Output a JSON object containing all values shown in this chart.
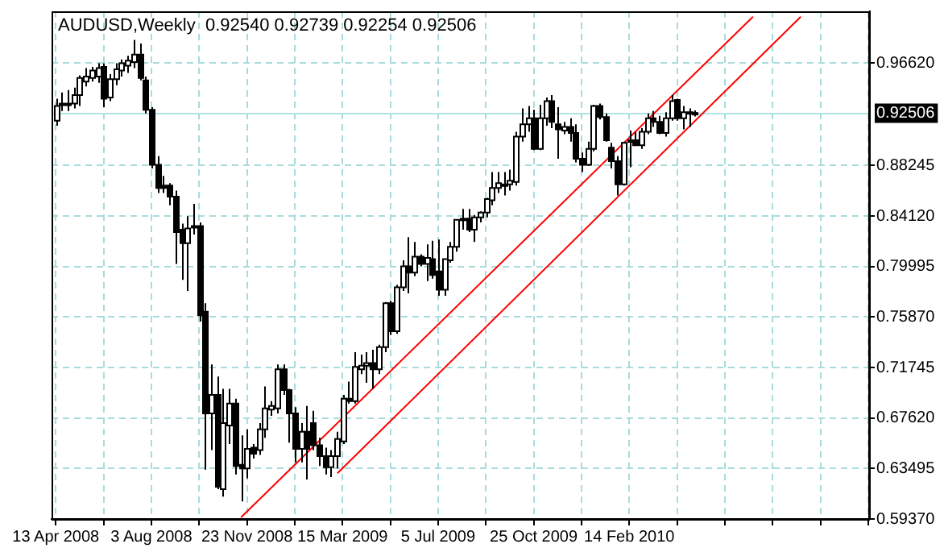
{
  "chart_data": {
    "type": "candlestick",
    "title": "AUDUSD,Weekly  0.92540 0.92739 0.92254 0.92506",
    "x": [
      "2008-04-13",
      "2008-04-20",
      "2008-04-27",
      "2008-05-04",
      "2008-05-11",
      "2008-05-18",
      "2008-05-25",
      "2008-06-01",
      "2008-06-08",
      "2008-06-15",
      "2008-06-22",
      "2008-06-29",
      "2008-07-06",
      "2008-07-13",
      "2008-07-20",
      "2008-07-27",
      "2008-08-03",
      "2008-08-10",
      "2008-08-17",
      "2008-08-24",
      "2008-08-31",
      "2008-09-07",
      "2008-09-14",
      "2008-09-21",
      "2008-09-28",
      "2008-10-05",
      "2008-10-12",
      "2008-10-19",
      "2008-10-26",
      "2008-11-02",
      "2008-11-09",
      "2008-11-16",
      "2008-11-23",
      "2008-11-30",
      "2008-12-07",
      "2008-12-14",
      "2008-12-21",
      "2008-12-28",
      "2009-01-04",
      "2009-01-11",
      "2009-01-18",
      "2009-01-25",
      "2009-02-01",
      "2009-02-08",
      "2009-02-15",
      "2009-02-22",
      "2009-03-01",
      "2009-03-08",
      "2009-03-15",
      "2009-03-22",
      "2009-03-29",
      "2009-04-05",
      "2009-04-12",
      "2009-04-19",
      "2009-04-26",
      "2009-05-03",
      "2009-05-10",
      "2009-05-17",
      "2009-05-24",
      "2009-05-31",
      "2009-06-07",
      "2009-06-14",
      "2009-06-21",
      "2009-06-28",
      "2009-07-05",
      "2009-07-12",
      "2009-07-19",
      "2009-07-26",
      "2009-08-02",
      "2009-08-09",
      "2009-08-16",
      "2009-08-23",
      "2009-08-30",
      "2009-09-06",
      "2009-09-13",
      "2009-09-20",
      "2009-09-27",
      "2009-10-04",
      "2009-10-11",
      "2009-10-18",
      "2009-10-25",
      "2009-11-01",
      "2009-11-08",
      "2009-11-15",
      "2009-11-22",
      "2009-11-29",
      "2009-12-06",
      "2009-12-13",
      "2009-12-20",
      "2009-12-27",
      "2010-01-03",
      "2010-01-10",
      "2010-01-17",
      "2010-01-24",
      "2010-01-31",
      "2010-02-07",
      "2010-02-14",
      "2010-02-21",
      "2010-02-28",
      "2010-03-07",
      "2010-03-14",
      "2010-03-21",
      "2010-03-28",
      "2010-04-04",
      "2010-04-11",
      "2010-04-18",
      "2010-04-25",
      "2010-05-02"
    ],
    "ohlc": [
      [
        0.919,
        0.937,
        0.915,
        0.931
      ],
      [
        0.932,
        0.942,
        0.927,
        0.933
      ],
      [
        0.933,
        0.944,
        0.927,
        0.933
      ],
      [
        0.933,
        0.946,
        0.929,
        0.94
      ],
      [
        0.94,
        0.956,
        0.931,
        0.954
      ],
      [
        0.951,
        0.962,
        0.947,
        0.955
      ],
      [
        0.954,
        0.963,
        0.951,
        0.96
      ],
      [
        0.955,
        0.966,
        0.95,
        0.962
      ],
      [
        0.963,
        0.966,
        0.93,
        0.937
      ],
      [
        0.938,
        0.957,
        0.935,
        0.953
      ],
      [
        0.953,
        0.966,
        0.948,
        0.961
      ],
      [
        0.96,
        0.969,
        0.955,
        0.966
      ],
      [
        0.964,
        0.972,
        0.958,
        0.968
      ],
      [
        0.967,
        0.985,
        0.962,
        0.973
      ],
      [
        0.973,
        0.982,
        0.952,
        0.954
      ],
      [
        0.952,
        0.955,
        0.925,
        0.928
      ],
      [
        0.928,
        0.93,
        0.88,
        0.883
      ],
      [
        0.883,
        0.89,
        0.86,
        0.864
      ],
      [
        0.866,
        0.874,
        0.86,
        0.864
      ],
      [
        0.866,
        0.868,
        0.85,
        0.857
      ],
      [
        0.857,
        0.862,
        0.802,
        0.828
      ],
      [
        0.83,
        0.835,
        0.789,
        0.819
      ],
      [
        0.819,
        0.841,
        0.78,
        0.831
      ],
      [
        0.832,
        0.851,
        0.826,
        0.833
      ],
      [
        0.833,
        0.836,
        0.755,
        0.76
      ],
      [
        0.763,
        0.77,
        0.634,
        0.68
      ],
      [
        0.68,
        0.72,
        0.65,
        0.695
      ],
      [
        0.695,
        0.71,
        0.618,
        0.62
      ],
      [
        0.618,
        0.7,
        0.612,
        0.672
      ],
      [
        0.67,
        0.7,
        0.655,
        0.688
      ],
      [
        0.688,
        0.692,
        0.63,
        0.637
      ],
      [
        0.638,
        0.662,
        0.608,
        0.635
      ],
      [
        0.635,
        0.667,
        0.627,
        0.651
      ],
      [
        0.652,
        0.655,
        0.643,
        0.647
      ],
      [
        0.65,
        0.672,
        0.646,
        0.667
      ],
      [
        0.667,
        0.702,
        0.66,
        0.684
      ],
      [
        0.683,
        0.69,
        0.678,
        0.686
      ],
      [
        0.684,
        0.72,
        0.68,
        0.716
      ],
      [
        0.716,
        0.72,
        0.695,
        0.699
      ],
      [
        0.699,
        0.7,
        0.656,
        0.68
      ],
      [
        0.68,
        0.685,
        0.64,
        0.651
      ],
      [
        0.651,
        0.672,
        0.64,
        0.665
      ],
      [
        0.665,
        0.686,
        0.626,
        0.651
      ],
      [
        0.672,
        0.682,
        0.65,
        0.654
      ],
      [
        0.654,
        0.66,
        0.637,
        0.645
      ],
      [
        0.645,
        0.652,
        0.63,
        0.636
      ],
      [
        0.636,
        0.65,
        0.628,
        0.645
      ],
      [
        0.645,
        0.665,
        0.635,
        0.659
      ],
      [
        0.657,
        0.695,
        0.655,
        0.692
      ],
      [
        0.692,
        0.706,
        0.688,
        0.69
      ],
      [
        0.69,
        0.73,
        0.688,
        0.718
      ],
      [
        0.716,
        0.728,
        0.712,
        0.719
      ],
      [
        0.719,
        0.73,
        0.705,
        0.721
      ],
      [
        0.721,
        0.732,
        0.7,
        0.716
      ],
      [
        0.716,
        0.736,
        0.712,
        0.734
      ],
      [
        0.734,
        0.771,
        0.73,
        0.77
      ],
      [
        0.77,
        0.772,
        0.744,
        0.747
      ],
      [
        0.747,
        0.785,
        0.745,
        0.783
      ],
      [
        0.783,
        0.805,
        0.78,
        0.8
      ],
      [
        0.8,
        0.824,
        0.778,
        0.795
      ],
      [
        0.795,
        0.82,
        0.792,
        0.808
      ],
      [
        0.808,
        0.81,
        0.8,
        0.802
      ],
      [
        0.802,
        0.818,
        0.788,
        0.807
      ],
      [
        0.806,
        0.821,
        0.79,
        0.793
      ],
      [
        0.796,
        0.822,
        0.776,
        0.781
      ],
      [
        0.781,
        0.806,
        0.776,
        0.806
      ],
      [
        0.805,
        0.82,
        0.803,
        0.816
      ],
      [
        0.816,
        0.838,
        0.812,
        0.838
      ],
      [
        0.838,
        0.847,
        0.83,
        0.839
      ],
      [
        0.839,
        0.847,
        0.828,
        0.83
      ],
      [
        0.83,
        0.842,
        0.82,
        0.84
      ],
      [
        0.84,
        0.845,
        0.836,
        0.844
      ],
      [
        0.844,
        0.856,
        0.84,
        0.855
      ],
      [
        0.854,
        0.877,
        0.85,
        0.864
      ],
      [
        0.864,
        0.877,
        0.86,
        0.868
      ],
      [
        0.867,
        0.877,
        0.858,
        0.867
      ],
      [
        0.867,
        0.879,
        0.862,
        0.87
      ],
      [
        0.869,
        0.91,
        0.866,
        0.906
      ],
      [
        0.906,
        0.929,
        0.902,
        0.916
      ],
      [
        0.916,
        0.931,
        0.91,
        0.921
      ],
      [
        0.921,
        0.928,
        0.895,
        0.896
      ],
      [
        0.896,
        0.932,
        0.895,
        0.921
      ],
      [
        0.921,
        0.938,
        0.915,
        0.935
      ],
      [
        0.935,
        0.94,
        0.913,
        0.918
      ],
      [
        0.916,
        0.93,
        0.888,
        0.912
      ],
      [
        0.911,
        0.918,
        0.908,
        0.914
      ],
      [
        0.914,
        0.921,
        0.902,
        0.909
      ],
      [
        0.909,
        0.916,
        0.885,
        0.888
      ],
      [
        0.888,
        0.893,
        0.877,
        0.883
      ],
      [
        0.883,
        0.902,
        0.882,
        0.896
      ],
      [
        0.896,
        0.932,
        0.894,
        0.931
      ],
      [
        0.931,
        0.933,
        0.92,
        0.922
      ],
      [
        0.922,
        0.925,
        0.902,
        0.903
      ],
      [
        0.897,
        0.901,
        0.88,
        0.886
      ],
      [
        0.886,
        0.89,
        0.858,
        0.867
      ],
      [
        0.867,
        0.902,
        0.866,
        0.901
      ],
      [
        0.902,
        0.911,
        0.881,
        0.903
      ],
      [
        0.903,
        0.91,
        0.899,
        0.899
      ],
      [
        0.899,
        0.913,
        0.896,
        0.91
      ],
      [
        0.91,
        0.925,
        0.908,
        0.921
      ],
      [
        0.921,
        0.927,
        0.914,
        0.918
      ],
      [
        0.918,
        0.923,
        0.908,
        0.909
      ],
      [
        0.909,
        0.926,
        0.906,
        0.921
      ],
      [
        0.921,
        0.94,
        0.919,
        0.935
      ],
      [
        0.936,
        0.937,
        0.919,
        0.921
      ],
      [
        0.921,
        0.931,
        0.912,
        0.926
      ],
      [
        0.926,
        0.929,
        0.914,
        0.925
      ],
      [
        0.9254,
        0.92739,
        0.92254,
        0.92506
      ]
    ],
    "series": [
      {
        "type": "line",
        "color": "#ff0000",
        "x": [
          "2008-11-16",
          "2010-07-09"
        ],
        "values": [
          0.595,
          1.004
        ]
      },
      {
        "type": "line",
        "color": "#ff0000",
        "x": [
          "2009-03-09",
          "2010-09-03"
        ],
        "values": [
          0.631,
          1.004
        ]
      }
    ],
    "xlim": [
      "2008-04-08",
      "2010-11-23"
    ],
    "xticks": [
      {
        "value": "2008-04-13",
        "label": "13 Apr 2008"
      },
      {
        "value": "2008-06-08",
        "label": null
      },
      {
        "value": "2008-08-03",
        "label": "3 Aug 2008"
      },
      {
        "value": "2008-09-28",
        "label": null
      },
      {
        "value": "2008-11-23",
        "label": "23 Nov 2008"
      },
      {
        "value": "2009-01-18",
        "label": null
      },
      {
        "value": "2009-03-15",
        "label": "15 Mar 2009"
      },
      {
        "value": "2009-05-10",
        "label": null
      },
      {
        "value": "2009-07-05",
        "label": "5 Jul 2009"
      },
      {
        "value": "2009-08-30",
        "label": null
      },
      {
        "value": "2009-10-25",
        "label": "25 Oct 2009"
      },
      {
        "value": "2009-12-20",
        "label": null
      },
      {
        "value": "2010-02-14",
        "label": "14 Feb 2010"
      },
      {
        "value": "2010-04-11",
        "label": null
      },
      {
        "value": "2010-06-06",
        "label": null
      },
      {
        "value": "2010-08-01",
        "label": null
      },
      {
        "value": "2010-09-26",
        "label": null
      },
      {
        "value": "2010-11-21",
        "label": null
      }
    ],
    "ylim": [
      0.5937,
      1.0084
    ],
    "yticks": [
      {
        "value": 0.5937,
        "label": "0.59370"
      },
      0.63495,
      {
        "value": 0.6762,
        "label": "0.67620"
      },
      0.71745,
      {
        "value": 0.7587,
        "label": "0.75870"
      },
      0.79995,
      {
        "value": 0.8412,
        "label": "0.84120"
      },
      0.88245,
      {
        "value": 0.9662,
        "label": "0.96620"
      }
    ],
    "ref_lines": [
      {
        "axis": "y",
        "value": 0.92506,
        "label": "0.92506",
        "color": "#b0e4e4"
      }
    ],
    "grid": true
  }
}
